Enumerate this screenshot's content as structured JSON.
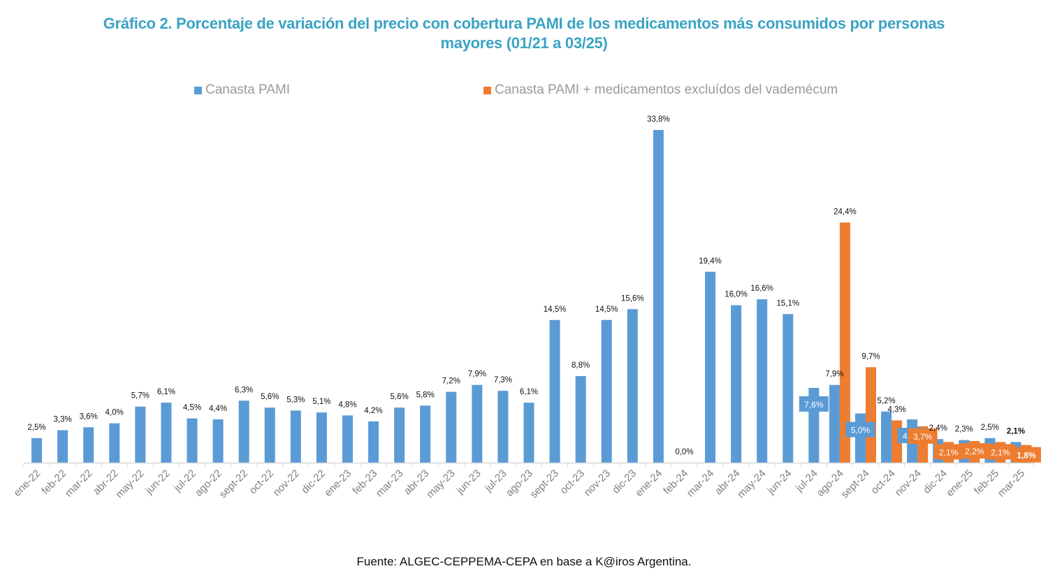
{
  "chart_data": {
    "type": "bar",
    "title": [
      "Gráfico 2. Porcentaje de variación del precio con cobertura PAMI de los medicamentos más consumidos por personas",
      "mayores (01/21 a 03/25)"
    ],
    "xlabel": "",
    "ylabel": "",
    "ylim": [
      0,
      35
    ],
    "grid": false,
    "legend_position": "top",
    "categories": [
      "ene-22",
      "feb-22",
      "mar-22",
      "abr-22",
      "may-22",
      "jun-22",
      "jul-22",
      "ago-22",
      "sept-22",
      "oct-22",
      "nov-22",
      "dic-22",
      "ene-23",
      "feb-23",
      "mar-23",
      "abr-23",
      "may-23",
      "jun-23",
      "jul-23",
      "ago-23",
      "sept-23",
      "oct-23",
      "nov-23",
      "dic-23",
      "ene-24",
      "feb-24",
      "mar-24",
      "abr-24",
      "may-24",
      "jun-24",
      "jul-24",
      "ago-24",
      "sept-24",
      "oct-24",
      "nov-24",
      "dic-24",
      "ene-25",
      "feb-25",
      "mar-25"
    ],
    "series": [
      {
        "name": "Canasta PAMI",
        "color": "#5b9bd5",
        "values": [
          2.5,
          3.3,
          3.6,
          4.0,
          5.7,
          6.1,
          4.5,
          4.4,
          6.3,
          5.6,
          5.3,
          5.1,
          4.8,
          4.2,
          5.6,
          5.8,
          7.2,
          7.9,
          7.3,
          6.1,
          14.5,
          8.8,
          14.5,
          15.6,
          33.8,
          0.0,
          19.4,
          16.0,
          16.6,
          15.1,
          7.6,
          7.9,
          5.0,
          5.2,
          4.4,
          2.4,
          2.3,
          2.5,
          2.1
        ],
        "labels": [
          "2,5%",
          "3,3%",
          "3,6%",
          "4,0%",
          "5,7%",
          "6,1%",
          "4,5%",
          "4,4%",
          "6,3%",
          "5,6%",
          "5,3%",
          "5,1%",
          "4,8%",
          "4,2%",
          "5,6%",
          "5,8%",
          "7,2%",
          "7,9%",
          "7,3%",
          "6,1%",
          "14,5%",
          "8,8%",
          "14,5%",
          "15,6%",
          "33,8%",
          "0,0%",
          "19,4%",
          "16,0%",
          "16,6%",
          "15,1%",
          "7,6%",
          "7,9%",
          "5,0%",
          "5,2%",
          "4,4%",
          "2,4%",
          "2,3%",
          "2,5%",
          "2,1%"
        ]
      },
      {
        "name": "Canasta PAMI + medicamentos excluídos del vademécum",
        "color": "#ed7d31",
        "values": [
          null,
          null,
          null,
          null,
          null,
          null,
          null,
          null,
          null,
          null,
          null,
          null,
          null,
          null,
          null,
          null,
          null,
          null,
          null,
          null,
          null,
          null,
          null,
          null,
          null,
          null,
          null,
          null,
          null,
          null,
          null,
          24.4,
          9.7,
          4.3,
          3.7,
          2.1,
          2.2,
          2.1,
          1.8
        ],
        "labels": [
          null,
          null,
          null,
          null,
          null,
          null,
          null,
          null,
          null,
          null,
          null,
          null,
          null,
          null,
          null,
          null,
          null,
          null,
          null,
          null,
          null,
          null,
          null,
          null,
          null,
          null,
          null,
          null,
          null,
          null,
          null,
          "24,4%",
          "9,7%",
          "4,3%",
          "3,7%",
          "2,1%",
          "2,2%",
          "2,1%",
          "1,8%"
        ]
      }
    ]
  },
  "source": "Fuente: ALGEC-CEPPEMA-CEPA en base a K@iros Argentina."
}
